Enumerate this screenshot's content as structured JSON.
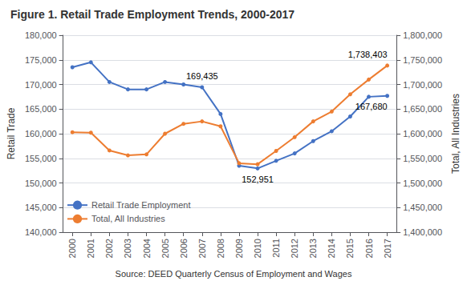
{
  "chart_data": {
    "type": "line",
    "title": "Figure 1. Retail Trade Employment Trends, 2000-2017",
    "source": "Source: DEED Quarterly Census of Employment and Wages",
    "x": [
      2000,
      2001,
      2002,
      2003,
      2004,
      2005,
      2006,
      2007,
      2008,
      2009,
      2010,
      2011,
      2012,
      2013,
      2014,
      2015,
      2016,
      2017
    ],
    "xlim": [
      1999.5,
      2017.5
    ],
    "xticks": [
      2000,
      2001,
      2002,
      2003,
      2004,
      2005,
      2006,
      2007,
      2008,
      2009,
      2010,
      2011,
      2012,
      2013,
      2014,
      2015,
      2016,
      2017
    ],
    "ylabel": "Retail Trade",
    "y2label": "Total, All Industries",
    "ylim": [
      140000,
      180000
    ],
    "yticks": [
      {
        "value": 140000,
        "label": "140,000"
      },
      {
        "value": 145000,
        "label": "145,000"
      },
      {
        "value": 150000,
        "label": "150,000"
      },
      {
        "value": 155000,
        "label": "155,000"
      },
      {
        "value": 160000,
        "label": "160,000"
      },
      {
        "value": 165000,
        "label": "165,000"
      },
      {
        "value": 170000,
        "label": "170,000"
      },
      {
        "value": 175000,
        "label": "175,000"
      },
      {
        "value": 180000,
        "label": "180,000"
      }
    ],
    "y2lim": [
      1400000,
      1800000
    ],
    "y2ticks": [
      {
        "value": 1400000,
        "label": "1,400,000"
      },
      {
        "value": 1450000,
        "label": "1,450,000"
      },
      {
        "value": 1500000,
        "label": "1,500,000"
      },
      {
        "value": 1550000,
        "label": "1,550,000"
      },
      {
        "value": 1600000,
        "label": "1,600,000"
      },
      {
        "value": 1650000,
        "label": "1,650,000"
      },
      {
        "value": 1700000,
        "label": "1,700,000"
      },
      {
        "value": 1750000,
        "label": "1,750,000"
      },
      {
        "value": 1800000,
        "label": "1,800,000"
      }
    ],
    "grid": true,
    "legend": "lower left",
    "marker": "circle",
    "series": [
      {
        "name": "Retail Trade Employment",
        "color": "#4472C4",
        "axis": "y",
        "values": [
          173500,
          174500,
          170500,
          169000,
          169000,
          170500,
          170000,
          169435,
          164000,
          153500,
          152951,
          154500,
          156000,
          158500,
          160500,
          163500,
          167500,
          167680
        ]
      },
      {
        "name": "Total, All Industries",
        "color": "#ED7D31",
        "axis": "y2",
        "values": [
          1603000,
          1602000,
          1566000,
          1556000,
          1558000,
          1600000,
          1620000,
          1625000,
          1615000,
          1540000,
          1538000,
          1565000,
          1593000,
          1625000,
          1645000,
          1680000,
          1710000,
          1738403
        ]
      }
    ],
    "annotations": [
      {
        "text": "169,435",
        "x": 2007,
        "y": 169435,
        "axis": "y"
      },
      {
        "text": "152,951",
        "x": 2010,
        "y": 152951,
        "axis": "y"
      },
      {
        "text": "1,738,403",
        "x": 2017,
        "y": 1738403,
        "axis": "y2"
      },
      {
        "text": "167,680",
        "x": 2017,
        "y": 167680,
        "axis": "y"
      }
    ]
  }
}
